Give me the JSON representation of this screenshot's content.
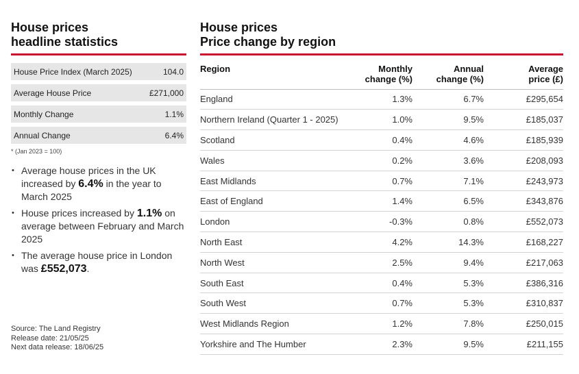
{
  "left": {
    "title_line1": "House prices",
    "title_line2": "headline statistics",
    "stats": [
      {
        "label": "House Price Index (March 2025)",
        "value": "104.0"
      },
      {
        "label": "Average House Price",
        "value": "£271,000"
      },
      {
        "label": "Monthly Change",
        "value": "1.1%"
      },
      {
        "label": "Annual Change",
        "value": "6.4%"
      }
    ],
    "footnote": "* (Jan 2023 = 100)",
    "bullets": [
      {
        "pre": "Average house prices in the UK increased by ",
        "bold": "6.4%",
        "post": " in the year to March 2025"
      },
      {
        "pre": "House prices increased by ",
        "bold": "1.1%",
        "post": " on average between February and March 2025"
      },
      {
        "pre": "The average house price in London was ",
        "bold": "£552,073",
        "post": "."
      }
    ],
    "source": {
      "line1": "Source: The Land Registry",
      "line2": "Release date: 21/05/25",
      "line3": "Next data release: 18/06/25"
    }
  },
  "right": {
    "title_line1": "House prices",
    "title_line2": "Price change by region",
    "columns": {
      "region": "Region",
      "monthly_1": "Monthly",
      "monthly_2": "change (%)",
      "annual_1": "Annual",
      "annual_2": "change (%)",
      "price_1": "Average",
      "price_2": "price (£)"
    },
    "rows": [
      {
        "region": "England",
        "monthly": "1.3%",
        "annual": "6.7%",
        "price": "£295,654"
      },
      {
        "region": "Northern Ireland (Quarter 1 - 2025)",
        "monthly": "1.0%",
        "annual": "9.5%",
        "price": "£185,037"
      },
      {
        "region": "Scotland",
        "monthly": "0.4%",
        "annual": "4.6%",
        "price": "£185,939"
      },
      {
        "region": "Wales",
        "monthly": "0.2%",
        "annual": "3.6%",
        "price": "£208,093"
      },
      {
        "region": "East Midlands",
        "monthly": "0.7%",
        "annual": "7.1%",
        "price": "£243,973"
      },
      {
        "region": "East of England",
        "monthly": "1.4%",
        "annual": "6.5%",
        "price": "£343,876"
      },
      {
        "region": "London",
        "monthly": "-0.3%",
        "annual": "0.8%",
        "price": "£552,073"
      },
      {
        "region": "North East",
        "monthly": "4.2%",
        "annual": "14.3%",
        "price": "£168,227"
      },
      {
        "region": "North West",
        "monthly": "2.5%",
        "annual": "9.4%",
        "price": "£217,063"
      },
      {
        "region": "South East",
        "monthly": "0.4%",
        "annual": "5.3%",
        "price": "£386,316"
      },
      {
        "region": "South West",
        "monthly": "0.7%",
        "annual": "5.3%",
        "price": "£310,837"
      },
      {
        "region": "West Midlands Region",
        "monthly": "1.2%",
        "annual": "7.8%",
        "price": "£250,015"
      },
      {
        "region": "Yorkshire and The Humber",
        "monthly": "2.3%",
        "annual": "9.5%",
        "price": "£211,155"
      }
    ]
  },
  "colors": {
    "accent": "#c8102e",
    "stat_bg": "#e6e6e6"
  }
}
